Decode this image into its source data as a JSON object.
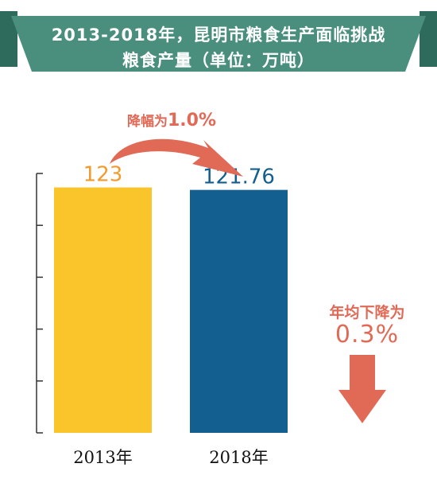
{
  "header": {
    "line1": "2013-2018年，昆明市粮食生产面临挑战",
    "line2": "粮食产量（单位：万吨）"
  },
  "annotations": {
    "change_label": "降幅为",
    "change_value": "1.0%",
    "annual_label": "年均下降为",
    "annual_value": "0.3%"
  },
  "colors": {
    "banner": "#4a8f7e",
    "banner_dark": "#2e6b5c",
    "bar_2013": "#fac52b",
    "bar_2018": "#135f8f",
    "value_2013": "#f29a2e",
    "value_2018": "#135f8f",
    "accent": "#e16a57"
  },
  "chart_data": {
    "type": "bar",
    "categories": [
      "2013年",
      "2018年"
    ],
    "values": [
      123,
      121.76
    ],
    "value_labels": [
      "123",
      "121.76"
    ],
    "ylim": [
      0,
      130
    ],
    "grid": false
  }
}
